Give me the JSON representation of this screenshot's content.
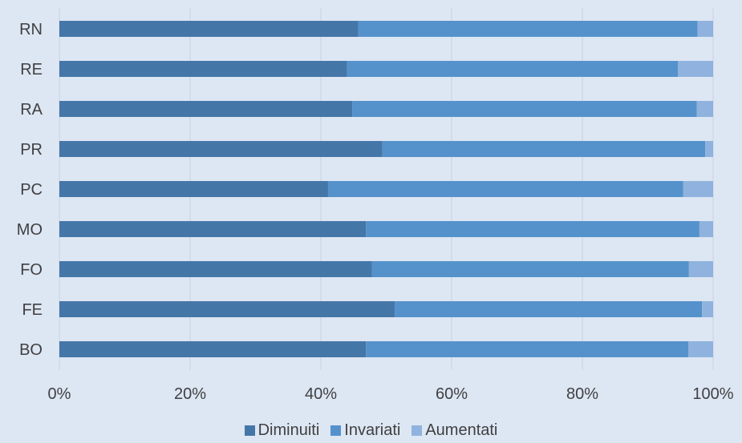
{
  "chart_data": {
    "type": "bar",
    "orientation": "horizontal",
    "stacked": "percent",
    "categories": [
      "RN",
      "RE",
      "RA",
      "PR",
      "PC",
      "MO",
      "FO",
      "FE",
      "BO"
    ],
    "series": [
      {
        "name": "Diminuiti",
        "color": "#4576a8",
        "values": [
          45.7,
          44.0,
          44.8,
          49.4,
          41.1,
          46.9,
          47.8,
          51.3,
          46.9
        ]
      },
      {
        "name": "Invariati",
        "color": "#5592cb",
        "values": [
          51.9,
          50.6,
          52.7,
          49.4,
          54.3,
          51.0,
          48.5,
          47.0,
          49.3
        ]
      },
      {
        "name": "Aumentati",
        "color": "#8fb3de",
        "values": [
          2.4,
          5.4,
          2.5,
          1.2,
          4.6,
          2.1,
          3.7,
          1.7,
          3.8
        ]
      }
    ],
    "x_ticks": [
      "0%",
      "20%",
      "40%",
      "60%",
      "80%",
      "100%"
    ],
    "xlim": [
      0,
      100
    ],
    "grid": "vertical",
    "legend_position": "bottom"
  }
}
